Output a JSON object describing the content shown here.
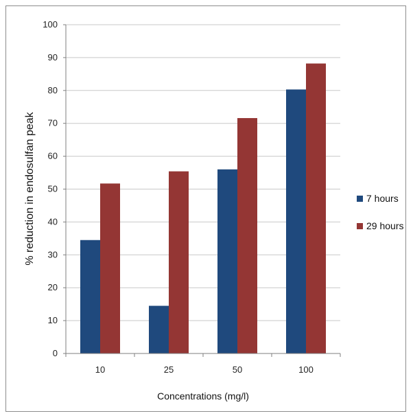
{
  "chart_data": {
    "type": "bar",
    "categories": [
      "10",
      "25",
      "50",
      "100"
    ],
    "series": [
      {
        "name": "7 hours",
        "color": "#1F497D",
        "values": [
          34.5,
          14.5,
          56,
          80.3
        ]
      },
      {
        "name": "29 hours",
        "color": "#943634",
        "values": [
          51.7,
          55.4,
          71.6,
          88.2
        ]
      }
    ],
    "xlabel": "Concentrations (mg/l)",
    "ylabel": "% reduction in endosulfan peak",
    "ylim": [
      0,
      100
    ],
    "yticks": [
      "0",
      "10",
      "20",
      "30",
      "40",
      "50",
      "60",
      "70",
      "80",
      "90",
      "100"
    ],
    "grid": true,
    "legend_position": "right"
  }
}
